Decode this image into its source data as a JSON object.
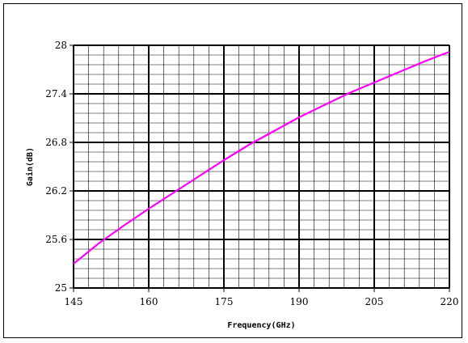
{
  "chart_data": {
    "type": "line",
    "title": "",
    "xlabel": "Frequency(GHz)",
    "ylabel": "Gain(dB)",
    "xlim": [
      145,
      220
    ],
    "ylim": [
      25,
      28
    ],
    "x_ticks": [
      145,
      160,
      175,
      190,
      205,
      220
    ],
    "y_ticks": [
      25,
      25.6,
      26.2,
      26.8,
      27.4,
      28
    ],
    "x_tick_labels": [
      "145",
      "160",
      "175",
      "190",
      "205",
      "220"
    ],
    "y_tick_labels": [
      "25",
      "25.6",
      "26.2",
      "26.8",
      "27.4",
      "28"
    ],
    "grid": true,
    "minor_grid": true,
    "series": [
      {
        "color": "#ff00ff",
        "x": [
          145,
          150,
          155,
          160,
          165,
          170,
          175,
          180,
          185,
          190,
          195,
          200,
          205,
          210,
          215,
          220
        ],
        "y": [
          25.3,
          25.55,
          25.77,
          25.98,
          26.18,
          26.38,
          26.58,
          26.77,
          26.94,
          27.11,
          27.26,
          27.41,
          27.54,
          27.67,
          27.8,
          27.92
        ]
      }
    ]
  }
}
